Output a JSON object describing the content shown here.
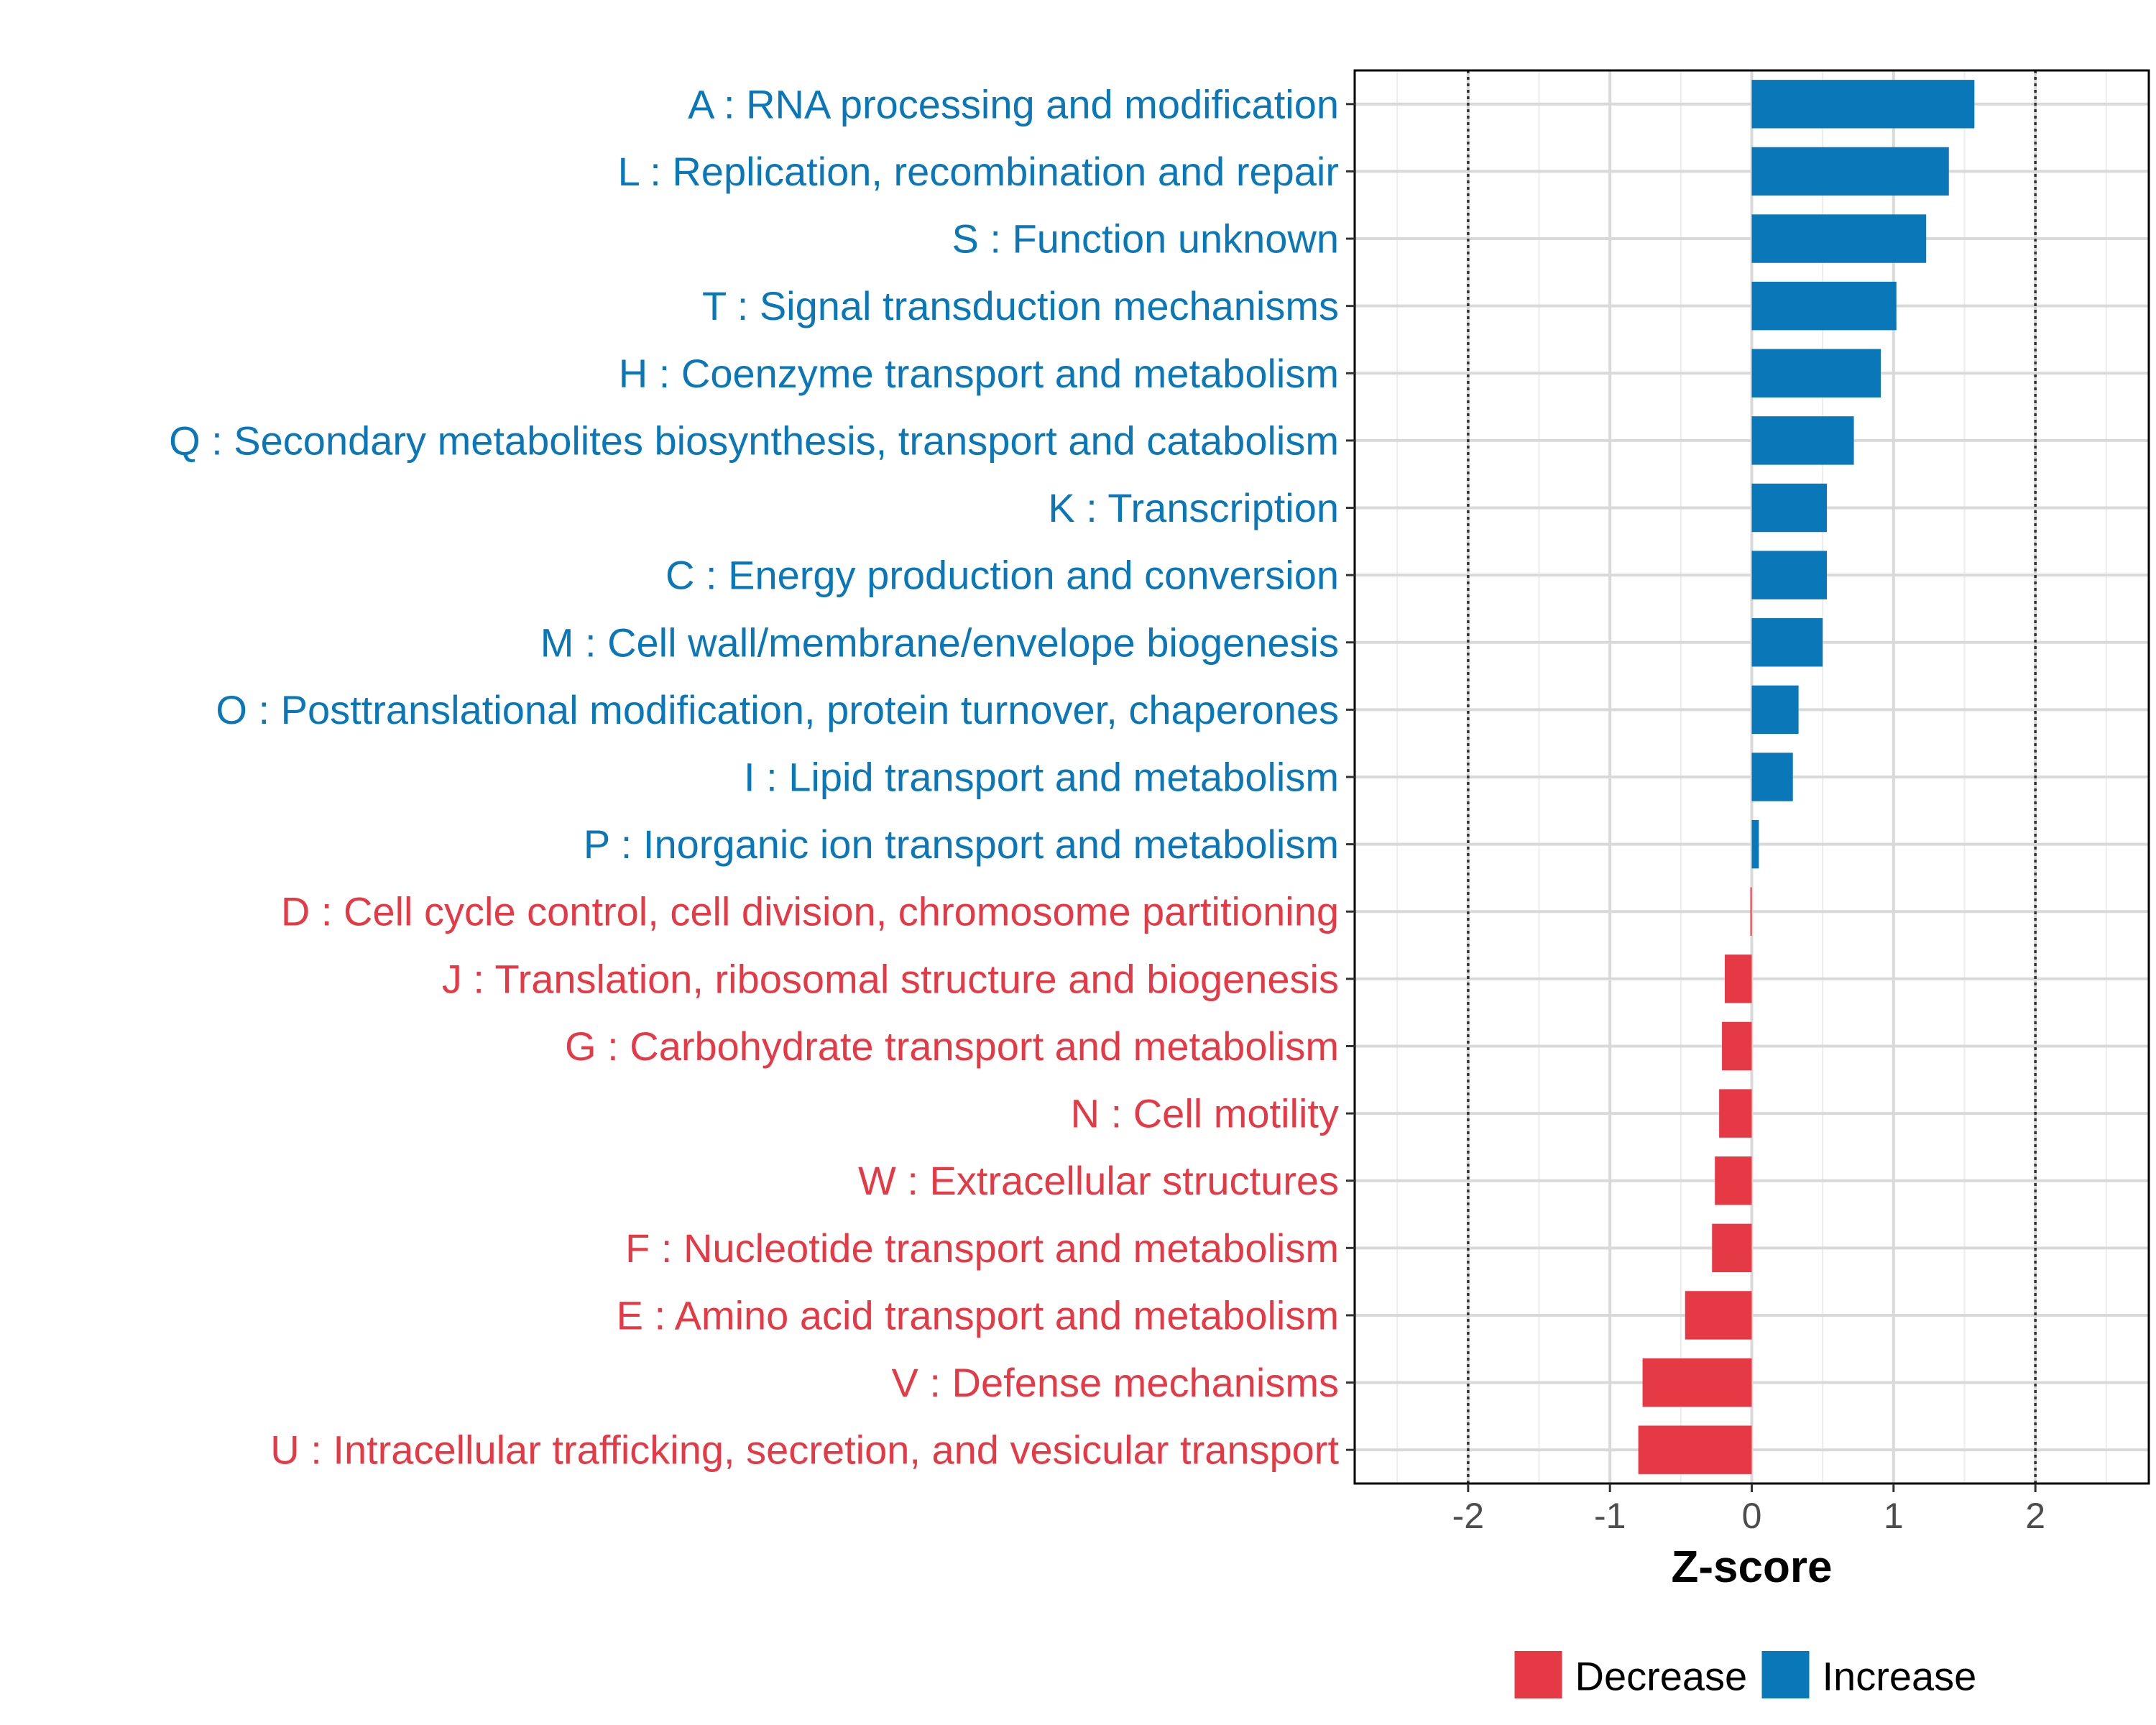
{
  "chart_data": {
    "type": "bar",
    "orientation": "horizontal",
    "title": "",
    "xlabel": "Z-score",
    "ylabel": "",
    "xlim": [
      -2.8,
      2.8
    ],
    "x_ticks": [
      "-2",
      "-1",
      "0",
      "1",
      "2"
    ],
    "reference_lines": [
      -2,
      2
    ],
    "grid": true,
    "categories": [
      "A : RNA processing and modification",
      "L : Replication, recombination and repair",
      "S : Function unknown",
      "T : Signal transduction mechanisms",
      "H : Coenzyme transport and metabolism",
      "Q : Secondary metabolites biosynthesis, transport and catabolism",
      "K : Transcription",
      "C : Energy production and conversion",
      "M : Cell wall/membrane/envelope biogenesis",
      "O : Posttranslational modification, protein turnover, chaperones",
      "I : Lipid transport and metabolism",
      "P : Inorganic ion transport and metabolism",
      "D : Cell cycle control, cell division, chromosome partitioning",
      "J : Translation, ribosomal structure and biogenesis",
      "G : Carbohydrate transport and metabolism",
      "N : Cell motility",
      "W : Extracellular structures",
      "F : Nucleotide transport and metabolism",
      "E : Amino acid transport and metabolism",
      "V : Defense mechanisms",
      "U : Intracellular trafficking, secretion, and vesicular transport"
    ],
    "values": [
      1.57,
      1.39,
      1.23,
      1.02,
      0.91,
      0.72,
      0.53,
      0.53,
      0.5,
      0.33,
      0.29,
      0.05,
      -0.01,
      -0.19,
      -0.21,
      -0.23,
      -0.26,
      -0.28,
      -0.47,
      -0.77,
      -0.8
    ],
    "groups": [
      "Increase",
      "Increase",
      "Increase",
      "Increase",
      "Increase",
      "Increase",
      "Increase",
      "Increase",
      "Increase",
      "Increase",
      "Increase",
      "Increase",
      "Decrease",
      "Decrease",
      "Decrease",
      "Decrease",
      "Decrease",
      "Decrease",
      "Decrease",
      "Decrease",
      "Decrease"
    ],
    "colors": {
      "Increase": "#0a77b8",
      "Decrease": "#e63946"
    },
    "legend": {
      "position": "bottom",
      "entries": [
        {
          "name": "Decrease",
          "color": "#e63946"
        },
        {
          "name": "Increase",
          "color": "#0a77b8"
        }
      ]
    }
  }
}
